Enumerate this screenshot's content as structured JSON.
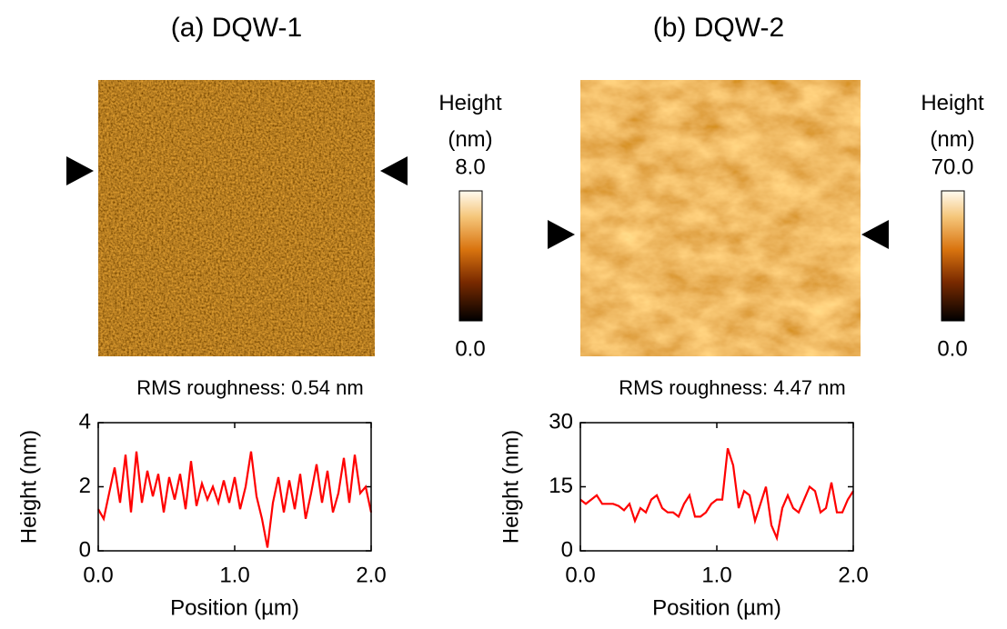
{
  "chart_data": [
    {
      "type": "line",
      "title": "(a) DQW-1",
      "colorbar_title": "Height (nm)",
      "colorbar_ticks": [
        {
          "value": 0,
          "label": "0.0"
        },
        {
          "value": 8,
          "label": "8.0"
        }
      ],
      "caption": "RMS roughness: 0.54 nm",
      "xlabel": "Position (µm)",
      "ylabel": "Height (nm)",
      "x": [
        0,
        0.04,
        0.08,
        0.12,
        0.16,
        0.2,
        0.24,
        0.28,
        0.32,
        0.36,
        0.4,
        0.44,
        0.48,
        0.52,
        0.56,
        0.6,
        0.64,
        0.68,
        0.72,
        0.76,
        0.8,
        0.84,
        0.88,
        0.92,
        0.96,
        1.0,
        1.04,
        1.08,
        1.12,
        1.16,
        1.2,
        1.24,
        1.28,
        1.32,
        1.36,
        1.4,
        1.44,
        1.48,
        1.52,
        1.56,
        1.6,
        1.64,
        1.68,
        1.72,
        1.76,
        1.8,
        1.84,
        1.88,
        1.92,
        1.96,
        2.0
      ],
      "series": [
        {
          "color": "#ff0000",
          "values": [
            1.3,
            1.0,
            1.8,
            2.6,
            1.5,
            3.0,
            1.2,
            3.1,
            1.5,
            2.5,
            1.7,
            2.4,
            1.2,
            2.3,
            1.6,
            2.4,
            1.3,
            2.8,
            1.4,
            2.1,
            1.6,
            2.0,
            1.5,
            2.2,
            1.5,
            2.3,
            1.3,
            2.0,
            3.1,
            1.7,
            1.0,
            0.1,
            1.5,
            2.3,
            1.2,
            2.2,
            1.3,
            2.4,
            1.0,
            1.8,
            2.7,
            1.5,
            2.5,
            1.2,
            1.8,
            2.9,
            1.5,
            3.0,
            1.8,
            2.0,
            1.2
          ]
        }
      ],
      "xlim": [
        0,
        2
      ],
      "xticks": [
        {
          "value": 0,
          "label": "0.0"
        },
        {
          "value": 1,
          "label": "1.0"
        },
        {
          "value": 2,
          "label": "2.0"
        }
      ],
      "ylim": [
        0,
        4
      ],
      "yticks": [
        0,
        2,
        4
      ]
    },
    {
      "type": "line",
      "title": "(b) DQW-2",
      "colorbar_title": "Height (nm)",
      "colorbar_ticks": [
        {
          "value": 0,
          "label": "0.0"
        },
        {
          "value": 70,
          "label": "70.0"
        }
      ],
      "caption": "RMS roughness: 4.47 nm",
      "xlabel": "Position (µm)",
      "ylabel": "Height (nm)",
      "x": [
        0,
        0.04,
        0.08,
        0.12,
        0.16,
        0.2,
        0.24,
        0.28,
        0.32,
        0.36,
        0.4,
        0.44,
        0.48,
        0.52,
        0.56,
        0.6,
        0.64,
        0.68,
        0.72,
        0.76,
        0.8,
        0.84,
        0.88,
        0.92,
        0.96,
        1.0,
        1.04,
        1.08,
        1.12,
        1.16,
        1.2,
        1.24,
        1.28,
        1.32,
        1.36,
        1.4,
        1.44,
        1.48,
        1.52,
        1.56,
        1.6,
        1.64,
        1.68,
        1.72,
        1.76,
        1.8,
        1.84,
        1.88,
        1.92,
        1.96,
        2.0
      ],
      "series": [
        {
          "color": "#ff0000",
          "values": [
            12,
            11,
            12,
            13,
            11,
            11,
            11,
            10.5,
            9.5,
            11,
            7,
            10,
            9,
            12,
            13,
            10,
            9,
            9,
            8,
            11,
            13,
            8,
            8,
            9,
            11,
            12,
            12,
            24,
            20,
            10,
            14,
            13,
            7,
            11,
            15,
            6,
            3,
            10,
            13,
            10,
            9,
            12,
            15,
            14,
            9,
            10,
            16,
            9,
            9,
            12,
            14
          ]
        }
      ],
      "xlim": [
        0,
        2
      ],
      "xticks": [
        {
          "value": 0,
          "label": "0.0"
        },
        {
          "value": 1,
          "label": "1.0"
        },
        {
          "value": 2,
          "label": "2.0"
        }
      ],
      "ylim": [
        0,
        30
      ],
      "yticks": [
        0,
        15,
        30
      ]
    }
  ]
}
